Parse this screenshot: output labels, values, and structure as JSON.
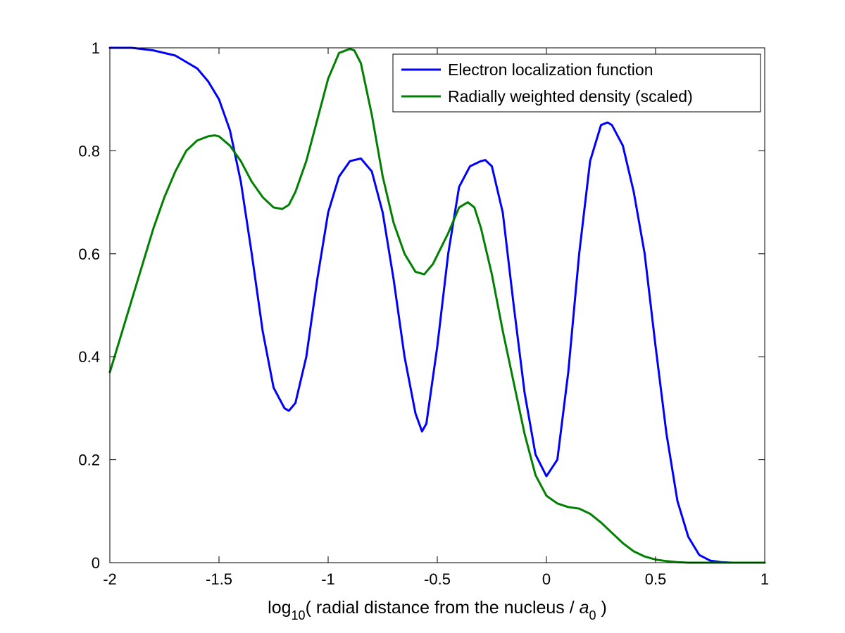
{
  "chart_data": {
    "type": "line",
    "title": "",
    "xlabel": {
      "prefix": "log",
      "sub": "10",
      "mid": "( radial distance from the nucleus / ",
      "var": "a",
      "var_sub": "0",
      "suffix": " )"
    },
    "ylabel": "",
    "xlim": [
      -2,
      1
    ],
    "ylim": [
      0,
      1
    ],
    "xticks": [
      -2,
      -1.5,
      -1,
      -0.5,
      0,
      0.5,
      1
    ],
    "xtick_labels": [
      "-2",
      "-1.5",
      "-1",
      "-0.5",
      "0",
      "0.5",
      "1"
    ],
    "yticks": [
      0,
      0.2,
      0.4,
      0.6,
      0.8,
      1
    ],
    "ytick_labels": [
      "0",
      "0.2",
      "0.4",
      "0.6",
      "0.8",
      "1"
    ],
    "grid": false,
    "legend_position": "top-right",
    "series": [
      {
        "name": "Electron localization function",
        "color": "#0000ff",
        "x": [
          -2.0,
          -1.9,
          -1.8,
          -1.7,
          -1.6,
          -1.55,
          -1.5,
          -1.45,
          -1.4,
          -1.35,
          -1.3,
          -1.25,
          -1.2,
          -1.18,
          -1.15,
          -1.1,
          -1.05,
          -1.0,
          -0.95,
          -0.9,
          -0.85,
          -0.8,
          -0.75,
          -0.7,
          -0.65,
          -0.6,
          -0.57,
          -0.55,
          -0.5,
          -0.45,
          -0.4,
          -0.35,
          -0.3,
          -0.28,
          -0.25,
          -0.2,
          -0.15,
          -0.1,
          -0.05,
          0.0,
          0.05,
          0.1,
          0.15,
          0.2,
          0.25,
          0.28,
          0.3,
          0.35,
          0.4,
          0.45,
          0.5,
          0.55,
          0.6,
          0.65,
          0.7,
          0.75,
          0.8,
          0.85,
          0.9,
          1.0
        ],
        "y": [
          1.0,
          1.0,
          0.995,
          0.985,
          0.96,
          0.935,
          0.9,
          0.84,
          0.74,
          0.6,
          0.45,
          0.34,
          0.3,
          0.295,
          0.31,
          0.4,
          0.55,
          0.68,
          0.75,
          0.78,
          0.785,
          0.76,
          0.68,
          0.55,
          0.4,
          0.29,
          0.255,
          0.27,
          0.42,
          0.6,
          0.73,
          0.77,
          0.78,
          0.782,
          0.77,
          0.68,
          0.5,
          0.33,
          0.21,
          0.168,
          0.2,
          0.37,
          0.6,
          0.78,
          0.85,
          0.855,
          0.85,
          0.81,
          0.72,
          0.6,
          0.42,
          0.25,
          0.12,
          0.05,
          0.015,
          0.004,
          0.001,
          0.0,
          0.0,
          0.0
        ]
      },
      {
        "name": "Radially weighted density (scaled)",
        "color": "#008000",
        "x": [
          -2.0,
          -1.95,
          -1.9,
          -1.85,
          -1.8,
          -1.75,
          -1.7,
          -1.65,
          -1.6,
          -1.55,
          -1.52,
          -1.5,
          -1.45,
          -1.4,
          -1.35,
          -1.3,
          -1.25,
          -1.21,
          -1.18,
          -1.15,
          -1.1,
          -1.05,
          -1.0,
          -0.95,
          -0.9,
          -0.88,
          -0.85,
          -0.8,
          -0.75,
          -0.7,
          -0.65,
          -0.6,
          -0.56,
          -0.52,
          -0.45,
          -0.4,
          -0.36,
          -0.33,
          -0.3,
          -0.25,
          -0.2,
          -0.15,
          -0.1,
          -0.05,
          0.0,
          0.05,
          0.1,
          0.15,
          0.2,
          0.25,
          0.3,
          0.35,
          0.4,
          0.45,
          0.5,
          0.55,
          0.6,
          0.65,
          0.7,
          0.8,
          1.0
        ],
        "y": [
          0.37,
          0.44,
          0.51,
          0.58,
          0.65,
          0.71,
          0.76,
          0.8,
          0.82,
          0.828,
          0.83,
          0.828,
          0.81,
          0.78,
          0.74,
          0.71,
          0.69,
          0.687,
          0.695,
          0.72,
          0.78,
          0.86,
          0.94,
          0.99,
          0.998,
          0.995,
          0.97,
          0.87,
          0.75,
          0.66,
          0.6,
          0.565,
          0.56,
          0.58,
          0.64,
          0.69,
          0.7,
          0.69,
          0.65,
          0.56,
          0.45,
          0.35,
          0.25,
          0.17,
          0.13,
          0.115,
          0.108,
          0.105,
          0.095,
          0.078,
          0.058,
          0.038,
          0.022,
          0.012,
          0.006,
          0.003,
          0.001,
          0.0,
          0.0,
          0.0,
          0.0
        ]
      }
    ]
  }
}
